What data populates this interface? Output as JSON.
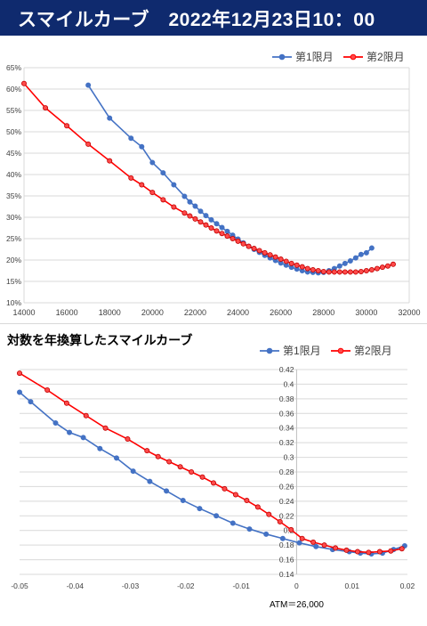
{
  "header": {
    "title": "スマイルカーブ　2022年12月23日10：00"
  },
  "colors": {
    "header_bg": "#0f2a6e",
    "series1": "#4472c4",
    "series2": "#ff0000",
    "series2_marker": "#c00000",
    "grid": "#d9d9d9"
  },
  "chart_data": [
    {
      "type": "line",
      "title": "",
      "xlabel": "",
      "ylabel": "",
      "xlim": [
        14000,
        32000
      ],
      "ylim": [
        0.1,
        0.65
      ],
      "x_ticks": [
        14000,
        16000,
        18000,
        20000,
        22000,
        24000,
        26000,
        28000,
        30000,
        32000
      ],
      "y_ticks": [
        0.1,
        0.15,
        0.2,
        0.25,
        0.3,
        0.35,
        0.4,
        0.45,
        0.5,
        0.55,
        0.6,
        0.65
      ],
      "y_tick_labels": [
        "10%",
        "15%",
        "20%",
        "25%",
        "30%",
        "35%",
        "40%",
        "45%",
        "50%",
        "55%",
        "60%",
        "65%"
      ],
      "grid": "horizontal",
      "legend": "top-right",
      "series": [
        {
          "name": "第1限月",
          "x": [
            17000,
            18000,
            19000,
            19500,
            20000,
            20500,
            21000,
            21500,
            21750,
            22000,
            22250,
            22500,
            22750,
            23000,
            23250,
            23500,
            23750,
            24000,
            24250,
            24500,
            24750,
            25000,
            25250,
            25500,
            25750,
            26000,
            26250,
            26500,
            26750,
            27000,
            27250,
            27500,
            27750,
            28000,
            28250,
            28500,
            28750,
            29000,
            29250,
            29500,
            29750,
            30000,
            30250
          ],
          "y": [
            0.609,
            0.532,
            0.485,
            0.465,
            0.428,
            0.404,
            0.376,
            0.349,
            0.336,
            0.326,
            0.314,
            0.304,
            0.294,
            0.285,
            0.276,
            0.267,
            0.258,
            0.249,
            0.24,
            0.232,
            0.225,
            0.218,
            0.211,
            0.205,
            0.199,
            0.193,
            0.188,
            0.183,
            0.179,
            0.175,
            0.172,
            0.171,
            0.17,
            0.171,
            0.175,
            0.18,
            0.186,
            0.192,
            0.198,
            0.205,
            0.213,
            0.217,
            0.228
          ]
        },
        {
          "name": "第2限月",
          "x": [
            14000,
            15000,
            16000,
            17000,
            18000,
            19000,
            19500,
            20000,
            20500,
            21000,
            21500,
            21750,
            22000,
            22250,
            22500,
            22750,
            23000,
            23250,
            23500,
            23750,
            24000,
            24250,
            24500,
            24750,
            25000,
            25250,
            25500,
            25750,
            26000,
            26250,
            26500,
            26750,
            27000,
            27250,
            27500,
            27750,
            28000,
            28250,
            28500,
            28750,
            29000,
            29250,
            29500,
            29750,
            30000,
            30250,
            30500,
            30750,
            31000,
            31250
          ],
          "y": [
            0.613,
            0.556,
            0.514,
            0.471,
            0.432,
            0.392,
            0.376,
            0.358,
            0.341,
            0.324,
            0.31,
            0.303,
            0.296,
            0.289,
            0.282,
            0.275,
            0.268,
            0.262,
            0.256,
            0.25,
            0.244,
            0.238,
            0.232,
            0.227,
            0.222,
            0.217,
            0.212,
            0.207,
            0.202,
            0.197,
            0.192,
            0.188,
            0.184,
            0.18,
            0.177,
            0.175,
            0.173,
            0.172,
            0.172,
            0.172,
            0.172,
            0.172,
            0.172,
            0.173,
            0.175,
            0.177,
            0.18,
            0.183,
            0.186,
            0.19
          ]
        }
      ]
    },
    {
      "type": "line",
      "title": "対数を年換算したスマイルカーブ",
      "xlabel": "",
      "ylabel": "",
      "xlim": [
        -0.05,
        0.02
      ],
      "ylim": [
        0.14,
        0.42
      ],
      "x_ticks": [
        -0.05,
        -0.04,
        -0.03,
        -0.02,
        -0.01,
        0,
        0.01,
        0.02
      ],
      "y_ticks": [
        0.14,
        0.16,
        0.18,
        0.2,
        0.22,
        0.24,
        0.26,
        0.28,
        0.3,
        0.32,
        0.34,
        0.36,
        0.38,
        0.4,
        0.42
      ],
      "grid": "horizontal",
      "legend": "top-right",
      "annotation": "ATM＝26,000",
      "series": [
        {
          "name": "第1限月",
          "x": [
            -0.05,
            -0.048,
            -0.0435,
            -0.041,
            -0.0385,
            -0.0355,
            -0.0325,
            -0.0295,
            -0.0265,
            -0.0235,
            -0.0205,
            -0.0175,
            -0.0145,
            -0.0115,
            -0.0085,
            -0.0055,
            -0.0025,
            0.0005,
            0.0035,
            0.0065,
            0.0095,
            0.0115,
            0.0135,
            0.0155,
            0.0175,
            0.0195
          ],
          "y": [
            0.389,
            0.376,
            0.347,
            0.334,
            0.327,
            0.312,
            0.299,
            0.281,
            0.267,
            0.254,
            0.241,
            0.23,
            0.22,
            0.21,
            0.202,
            0.195,
            0.189,
            0.183,
            0.178,
            0.174,
            0.171,
            0.169,
            0.168,
            0.169,
            0.174,
            0.179
          ]
        },
        {
          "name": "第2限月",
          "x": [
            -0.05,
            -0.045,
            -0.0415,
            -0.038,
            -0.0345,
            -0.0305,
            -0.027,
            -0.025,
            -0.023,
            -0.021,
            -0.019,
            -0.017,
            -0.015,
            -0.013,
            -0.011,
            -0.009,
            -0.007,
            -0.005,
            -0.003,
            -0.001,
            0.001,
            0.003,
            0.005,
            0.007,
            0.009,
            0.011,
            0.013,
            0.015,
            0.017,
            0.019
          ],
          "y": [
            0.415,
            0.392,
            0.374,
            0.357,
            0.34,
            0.325,
            0.309,
            0.301,
            0.294,
            0.287,
            0.28,
            0.273,
            0.265,
            0.257,
            0.249,
            0.241,
            0.232,
            0.222,
            0.212,
            0.201,
            0.189,
            0.184,
            0.18,
            0.176,
            0.173,
            0.171,
            0.17,
            0.171,
            0.172,
            0.175
          ]
        }
      ]
    }
  ]
}
